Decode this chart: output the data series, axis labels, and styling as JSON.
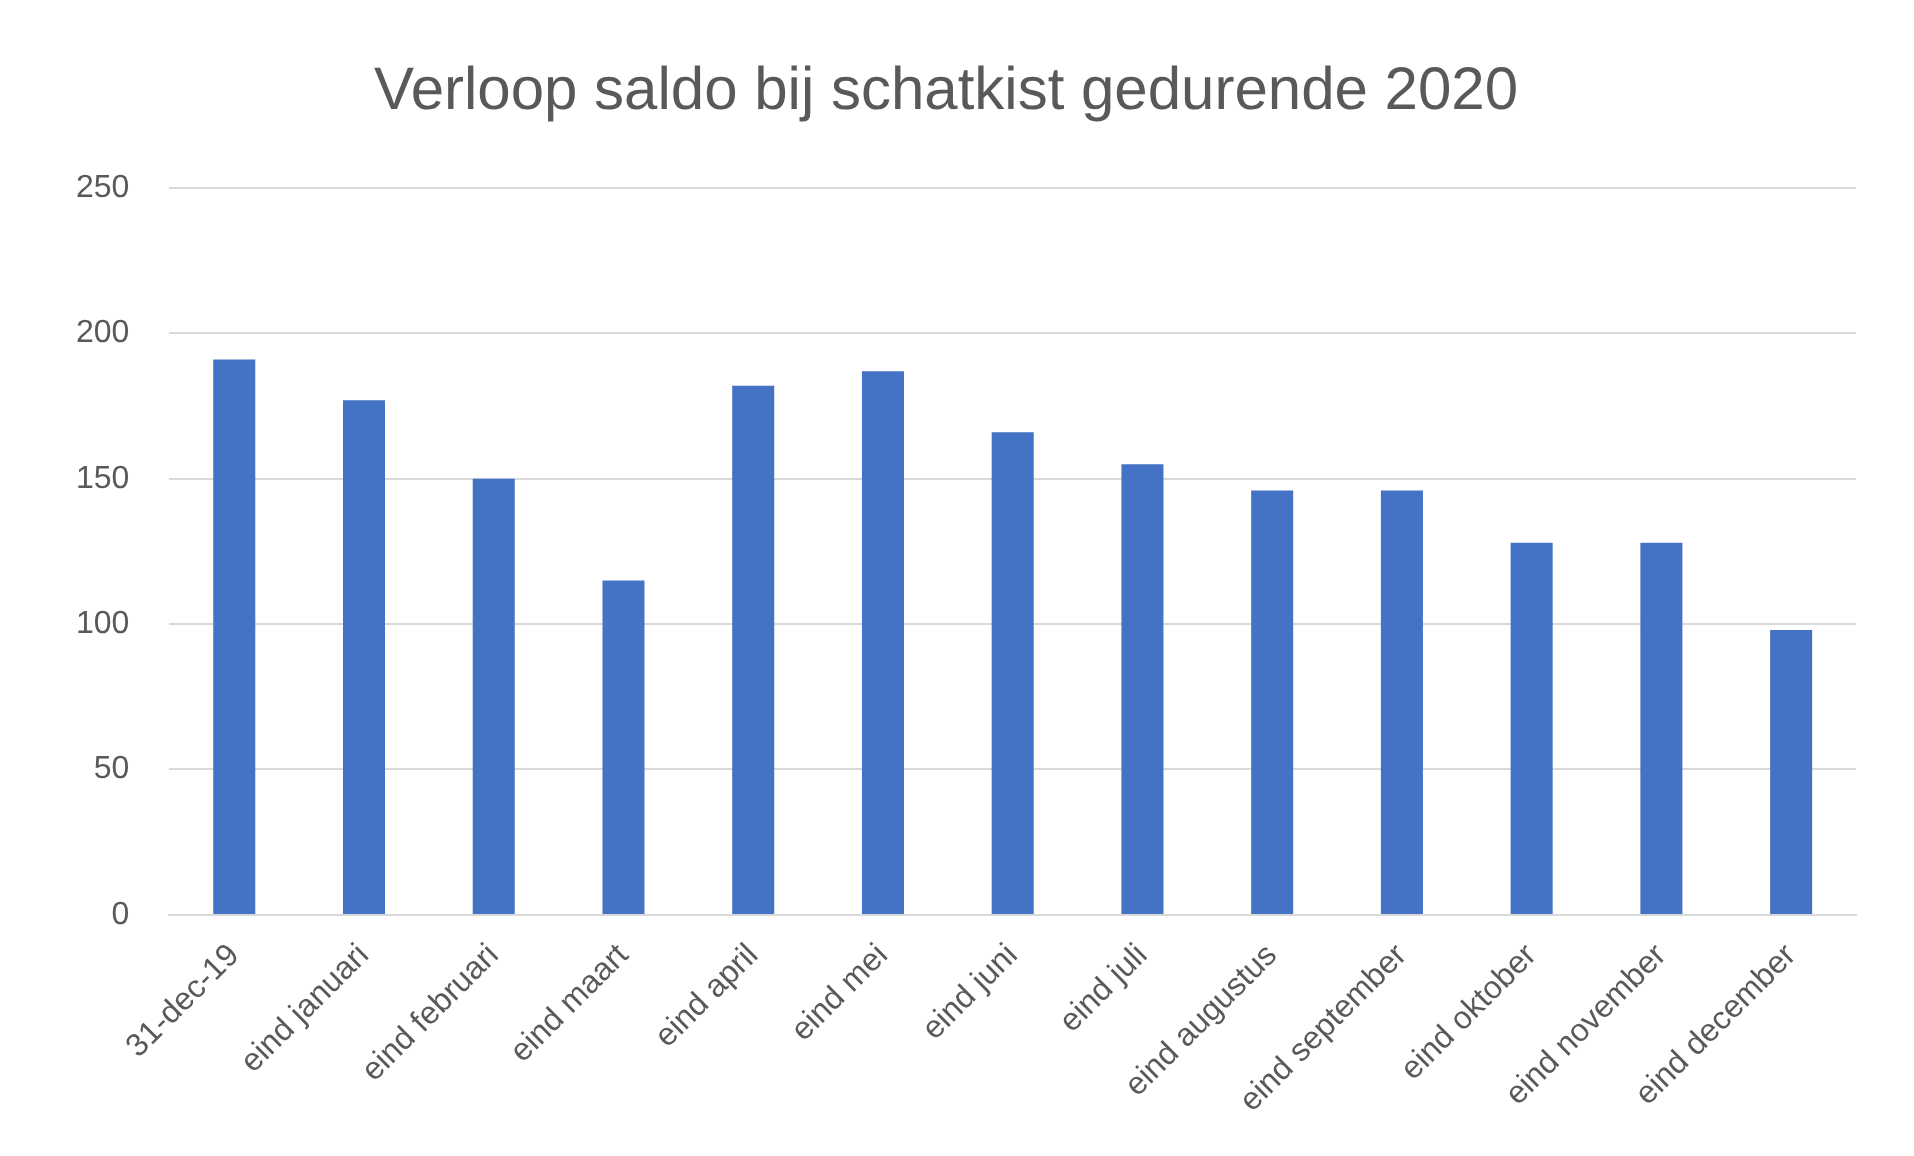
{
  "chart_data": {
    "type": "bar",
    "title": "Verloop saldo bij schatkist gedurende 2020",
    "categories": [
      "31-dec-19",
      "eind januari",
      "eind februari",
      "eind maart",
      "eind april",
      "eind mei",
      "eind juni",
      "eind juli",
      "eind augustus",
      "eind september",
      "eind oktober",
      "eind november",
      "eind december"
    ],
    "values": [
      191,
      177,
      150,
      115,
      182,
      187,
      166,
      155,
      146,
      146,
      128,
      128,
      98
    ],
    "color": "#4472c4",
    "ylim": [
      0,
      250
    ],
    "yticks": [
      0,
      50,
      100,
      150,
      200,
      250
    ],
    "grid": "y",
    "legend": false
  }
}
